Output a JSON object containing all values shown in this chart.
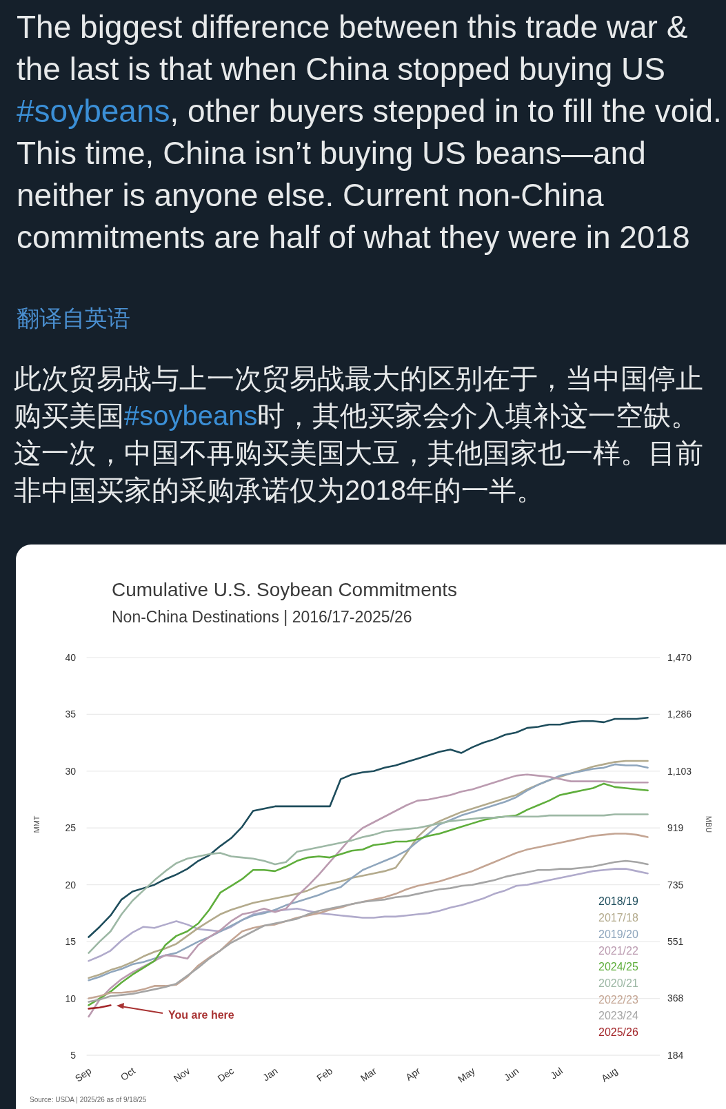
{
  "chart_data": {
    "type": "line",
    "title": "Cumulative U.S. Soybean Commitments",
    "subtitle": "Non-China Destinations | 2016/17-2025/26",
    "ylabel": "MMT",
    "y2label": "MBU",
    "annotations": [
      "The biggest difference between this trade war & the last is that when China stopped buying US #soybeans, other buyers stepped in to fill the void. This time, China isn’t buying US beans—and neither is anyone else. Current non-China commitments are half of what they were in 2018",
      "翻译自英语",
      "此次贸易战与上一次贸易战最大的区别在于，当中国停止购买美国#soybeans时，其他买家会介入填补这一空缺。这一次，中国不再购买美国大豆，其他国家也一样。目前非中国买家的采购承诺仅为2018年的一半。",
      "You are here",
      "Source: USDA | 2025/26 as of 9/18/25"
    ],
    "categories": [
      "Sep",
      null,
      null,
      null,
      "Oct",
      null,
      null,
      null,
      null,
      "Nov",
      null,
      null,
      null,
      "Dec",
      null,
      null,
      null,
      "Jan",
      null,
      null,
      null,
      null,
      "Feb",
      null,
      null,
      null,
      "Mar",
      null,
      null,
      null,
      "Apr",
      null,
      null,
      null,
      null,
      "May",
      null,
      null,
      null,
      "Jun",
      null,
      null,
      null,
      "Jul",
      null,
      null,
      null,
      null,
      "Aug",
      null,
      null,
      null
    ],
    "ylim": [
      5,
      40
    ],
    "yticks": [
      5,
      10,
      15,
      20,
      25,
      30,
      35,
      40
    ],
    "y2lim": [
      184,
      1470
    ],
    "y2ticks": [
      184,
      368,
      551,
      735,
      919,
      {
        "value": 1103,
        "label": "1,103"
      },
      {
        "value": 1286,
        "label": "1,286"
      },
      {
        "value": 1470,
        "label": "1,470"
      }
    ],
    "grid": "y",
    "legend": "bottom right",
    "series": [
      {
        "color": "#b0aacb",
        "values": [
          13.3,
          13.7,
          14.2,
          15.1,
          15.8,
          16.3,
          16.2,
          16.5,
          16.8,
          16.5,
          16.1,
          16.0,
          15.9,
          16.3,
          16.9,
          17.4,
          17.6,
          17.7,
          17.8,
          17.9,
          17.7,
          17.5,
          17.4,
          17.3,
          17.2,
          17.1,
          17.1,
          17.2,
          17.2,
          17.3,
          17.4,
          17.5,
          17.7,
          18.0,
          18.2,
          18.5,
          18.8,
          19.2,
          19.5,
          19.9,
          20.0,
          20.2,
          20.4,
          20.6,
          20.8,
          21.0,
          21.2,
          21.3,
          21.4,
          21.4,
          21.2,
          21.0
        ]
      },
      {
        "name": "2018/19",
        "color": "#1e4d5c",
        "values": [
          15.4,
          16.3,
          17.3,
          18.7,
          19.4,
          19.7,
          20.0,
          20.5,
          20.9,
          21.4,
          22.1,
          22.6,
          23.4,
          24.1,
          25.1,
          26.5,
          26.7,
          26.9,
          26.9,
          26.9,
          26.9,
          26.9,
          26.9,
          29.3,
          29.7,
          29.9,
          30.0,
          30.3,
          30.5,
          30.8,
          31.1,
          31.4,
          31.7,
          31.9,
          31.6,
          32.1,
          32.5,
          32.8,
          33.2,
          33.4,
          33.8,
          33.9,
          34.1,
          34.1,
          34.3,
          34.4,
          34.4,
          34.3,
          34.6,
          34.6,
          34.6,
          34.7
        ]
      },
      {
        "name": "2017/18",
        "color": "#b3aa8c",
        "values": [
          11.8,
          12.1,
          12.5,
          12.8,
          13.2,
          13.7,
          14.1,
          14.4,
          14.8,
          15.5,
          16.2,
          16.8,
          17.4,
          17.8,
          18.1,
          18.4,
          18.6,
          18.8,
          19.0,
          19.2,
          19.5,
          19.9,
          20.1,
          20.3,
          20.6,
          20.8,
          21.0,
          21.2,
          21.5,
          22.8,
          24.2,
          25.1,
          25.6,
          26.0,
          26.4,
          26.7,
          27.0,
          27.3,
          27.6,
          27.9,
          28.4,
          28.8,
          29.2,
          29.5,
          29.8,
          30.1,
          30.4,
          30.6,
          30.8,
          30.9,
          30.9,
          30.9
        ]
      },
      {
        "name": "2019/20",
        "color": "#8fa6bd",
        "values": [
          11.6,
          11.9,
          12.3,
          12.6,
          13.0,
          13.2,
          13.5,
          13.8,
          14.0,
          14.5,
          15.0,
          15.4,
          15.9,
          16.4,
          16.9,
          17.3,
          17.5,
          17.8,
          18.2,
          18.5,
          18.8,
          19.1,
          19.5,
          19.8,
          20.6,
          21.3,
          21.7,
          22.1,
          22.5,
          23.0,
          23.8,
          24.5,
          25.3,
          25.7,
          26.1,
          26.4,
          26.7,
          27.0,
          27.3,
          27.7,
          28.3,
          28.8,
          29.2,
          29.6,
          29.8,
          30.0,
          30.2,
          30.3,
          30.6,
          30.5,
          30.5,
          30.3
        ]
      },
      {
        "name": "2021/22",
        "color": "#bb9bb0",
        "values": [
          8.4,
          9.9,
          10.9,
          11.7,
          12.3,
          12.8,
          13.3,
          13.8,
          13.7,
          13.5,
          14.7,
          15.4,
          16.0,
          16.8,
          17.4,
          17.6,
          17.9,
          17.6,
          17.9,
          19.0,
          19.9,
          20.9,
          22.0,
          23.1,
          24.2,
          25.0,
          25.5,
          26.0,
          26.5,
          27.0,
          27.4,
          27.5,
          27.7,
          27.9,
          28.2,
          28.4,
          28.7,
          29.0,
          29.3,
          29.6,
          29.7,
          29.6,
          29.5,
          29.3,
          29.1,
          29.1,
          29.1,
          29.1,
          29.0,
          29.0,
          29.0,
          29.0
        ]
      },
      {
        "name": "2024/25",
        "color": "#5fae3c",
        "values": [
          9.4,
          10.0,
          10.6,
          11.4,
          12.1,
          12.7,
          13.3,
          14.7,
          15.5,
          15.9,
          16.6,
          17.8,
          19.3,
          19.9,
          20.5,
          21.3,
          21.3,
          21.2,
          21.6,
          22.1,
          22.4,
          22.5,
          22.4,
          22.7,
          23.0,
          23.1,
          23.5,
          23.6,
          23.8,
          23.8,
          24.0,
          24.3,
          24.5,
          24.8,
          25.1,
          25.4,
          25.7,
          25.9,
          26.0,
          26.1,
          26.6,
          27.0,
          27.4,
          27.9,
          28.1,
          28.3,
          28.5,
          28.9,
          28.6,
          28.5,
          28.4,
          28.3
        ]
      },
      {
        "name": "2020/21",
        "color": "#9db8a5",
        "values": [
          14.0,
          15.0,
          15.9,
          17.4,
          18.6,
          19.5,
          20.4,
          21.2,
          21.9,
          22.3,
          22.5,
          22.7,
          22.8,
          22.5,
          22.4,
          22.3,
          22.1,
          21.8,
          22.0,
          22.9,
          23.1,
          23.3,
          23.5,
          23.7,
          23.9,
          24.2,
          24.4,
          24.7,
          24.8,
          24.9,
          25.0,
          25.2,
          25.4,
          25.6,
          25.7,
          25.8,
          25.9,
          25.9,
          26.0,
          26.0,
          26.0,
          26.0,
          26.1,
          26.1,
          26.1,
          26.1,
          26.1,
          26.1,
          26.2,
          26.2,
          26.2,
          26.2
        ]
      },
      {
        "name": "2022/23",
        "color": "#c4a593",
        "values": [
          10.0,
          10.2,
          10.5,
          10.5,
          10.6,
          10.8,
          11.1,
          11.1,
          11.2,
          11.9,
          12.9,
          13.6,
          14.2,
          15.1,
          15.9,
          16.2,
          16.4,
          16.5,
          16.8,
          17.1,
          17.3,
          17.5,
          17.8,
          18.0,
          18.3,
          18.5,
          18.7,
          18.9,
          19.2,
          19.6,
          19.9,
          20.1,
          20.3,
          20.6,
          20.9,
          21.2,
          21.6,
          22.0,
          22.4,
          22.8,
          23.1,
          23.3,
          23.5,
          23.7,
          23.9,
          24.1,
          24.3,
          24.4,
          24.5,
          24.5,
          24.4,
          24.2
        ]
      },
      {
        "name": "2023/24",
        "color": "#a5a5a5",
        "values": [
          9.7,
          9.9,
          10.2,
          10.3,
          10.4,
          10.6,
          10.8,
          11.0,
          11.3,
          12.0,
          12.7,
          13.5,
          14.2,
          14.9,
          15.4,
          15.9,
          16.4,
          16.6,
          16.8,
          17.0,
          17.4,
          17.7,
          17.9,
          18.1,
          18.3,
          18.5,
          18.6,
          18.7,
          18.9,
          19.0,
          19.2,
          19.4,
          19.6,
          19.7,
          19.9,
          20.0,
          20.2,
          20.4,
          20.7,
          20.9,
          21.1,
          21.3,
          21.3,
          21.4,
          21.4,
          21.5,
          21.6,
          21.8,
          22.0,
          22.1,
          22.0,
          21.8
        ]
      },
      {
        "name": "2025/26",
        "color": "#a3262a",
        "values": [
          9.1,
          9.2,
          9.4,
          null,
          null,
          null,
          null,
          null,
          null,
          null,
          null,
          null,
          null,
          null,
          null,
          null,
          null,
          null,
          null,
          null,
          null,
          null,
          null,
          null,
          null,
          null,
          null,
          null,
          null,
          null,
          null,
          null,
          null,
          null,
          null,
          null,
          null,
          null,
          null,
          null,
          null,
          null,
          null,
          null,
          null,
          null,
          null,
          null,
          null,
          null,
          null,
          null
        ]
      }
    ]
  }
}
